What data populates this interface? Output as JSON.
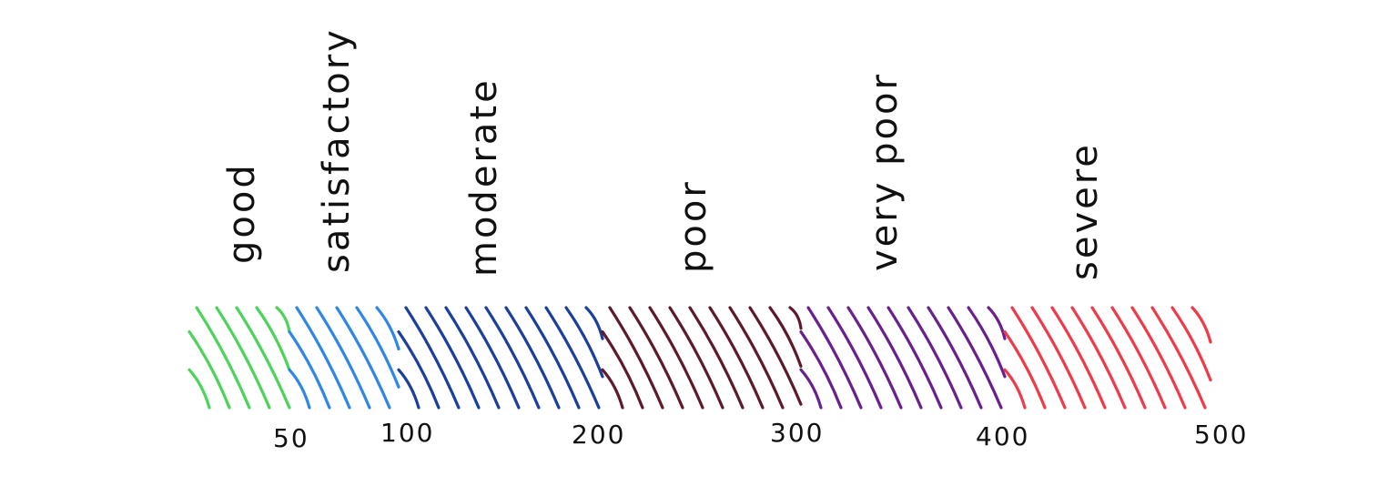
{
  "scale": {
    "bands": [
      {
        "label": "good",
        "from": 0,
        "to": 50,
        "color": "#4cd45a"
      },
      {
        "label": "satisfactory",
        "from": 50,
        "to": 100,
        "color": "#2e86e8"
      },
      {
        "label": "moderate",
        "from": 100,
        "to": 200,
        "color": "#1a3f9e"
      },
      {
        "label": "poor",
        "from": 200,
        "to": 300,
        "color": "#5e1a2a"
      },
      {
        "label": "very poor",
        "from": 300,
        "to": 400,
        "color": "#6a1f8e"
      },
      {
        "label": "severe",
        "from": 400,
        "to": 500,
        "color": "#f03a4a"
      }
    ],
    "ticks": [
      "50",
      "100",
      "200",
      "300",
      "400",
      "500"
    ]
  }
}
